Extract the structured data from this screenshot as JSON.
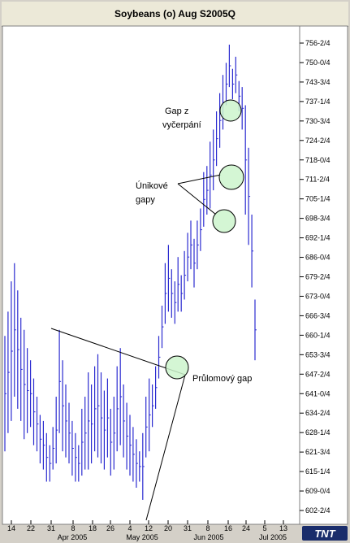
{
  "window": {
    "title": "Soybeans (o) Aug S2005Q"
  },
  "logo": {
    "text": "TNT"
  },
  "colors": {
    "bars": "#2b2bd0",
    "highlight": "#ccf5cc",
    "lines": "#000000",
    "plot_bg": "#ffffff"
  },
  "chart_data": {
    "type": "ohlc",
    "title": "Soybeans (o) Aug S2005Q",
    "y_ticks": [
      "756-2/4",
      "750-0/4",
      "743-3/4",
      "737-1/4",
      "730-3/4",
      "724-2/4",
      "718-0/4",
      "711-2/4",
      "705-1/4",
      "698-3/4",
      "692-1/4",
      "686-0/4",
      "679-2/4",
      "673-0/4",
      "666-3/4",
      "660-1/4",
      "653-3/4",
      "647-2/4",
      "641-0/4",
      "634-2/4",
      "628-1/4",
      "621-3/4",
      "615-1/4",
      "609-0/4",
      "602-2/4"
    ],
    "y_range": [
      598,
      760
    ],
    "x_ticks": [
      "14",
      "22",
      "31",
      "8",
      "18",
      "26",
      "4",
      "12",
      "20",
      "31",
      "8",
      "16",
      "24",
      "5",
      "13"
    ],
    "months": [
      "Apr 2005",
      "May 2005",
      "Jun 2005",
      "Jul 2005"
    ],
    "bars": [
      [
        660,
        622
      ],
      [
        668,
        628
      ],
      [
        678,
        632
      ],
      [
        684,
        640
      ],
      [
        675,
        636
      ],
      [
        666,
        632
      ],
      [
        662,
        626
      ],
      [
        656,
        628
      ],
      [
        652,
        630
      ],
      [
        646,
        624
      ],
      [
        640,
        622
      ],
      [
        634,
        618
      ],
      [
        632,
        616
      ],
      [
        628,
        612
      ],
      [
        624,
        612
      ],
      [
        630,
        616
      ],
      [
        640,
        618
      ],
      [
        662,
        628
      ],
      [
        652,
        622
      ],
      [
        644,
        620
      ],
      [
        638,
        618
      ],
      [
        632,
        614
      ],
      [
        628,
        612
      ],
      [
        624,
        612
      ],
      [
        636,
        614
      ],
      [
        640,
        616
      ],
      [
        648,
        616
      ],
      [
        644,
        618
      ],
      [
        650,
        622
      ],
      [
        654,
        620
      ],
      [
        648,
        618
      ],
      [
        642,
        616
      ],
      [
        646,
        620
      ],
      [
        636,
        614
      ],
      [
        640,
        616
      ],
      [
        650,
        622
      ],
      [
        656,
        624
      ],
      [
        644,
        620
      ],
      [
        638,
        616
      ],
      [
        634,
        614
      ],
      [
        630,
        612
      ],
      [
        626,
        610
      ],
      [
        622,
        612
      ],
      [
        628,
        606
      ],
      [
        640,
        620
      ],
      [
        646,
        622
      ],
      [
        644,
        630
      ],
      [
        650,
        636
      ],
      [
        660,
        646
      ],
      [
        670,
        656
      ],
      [
        684,
        664
      ],
      [
        690,
        668
      ],
      [
        682,
        666
      ],
      [
        678,
        664
      ],
      [
        686,
        668
      ],
      [
        680,
        668
      ],
      [
        688,
        672
      ],
      [
        694,
        678
      ],
      [
        698,
        682
      ],
      [
        692,
        676
      ],
      [
        698,
        682
      ],
      [
        702,
        688
      ],
      [
        714,
        696
      ],
      [
        716,
        700
      ],
      [
        724,
        702
      ],
      [
        728,
        708
      ],
      [
        734,
        716
      ],
      [
        740,
        722
      ],
      [
        746,
        728
      ],
      [
        750,
        736
      ],
      [
        756,
        742
      ],
      [
        748,
        738
      ],
      [
        752,
        740
      ],
      [
        744,
        734
      ],
      [
        742,
        728
      ],
      [
        736,
        700
      ],
      [
        722,
        690
      ],
      [
        700,
        676
      ],
      [
        672,
        652
      ]
    ],
    "annotations": [
      {
        "text": "Gap z",
        "text2": "vyčerpání"
      },
      {
        "text": "Únikové",
        "text2": "gapy"
      },
      {
        "text": "Průlomový gap"
      }
    ]
  }
}
